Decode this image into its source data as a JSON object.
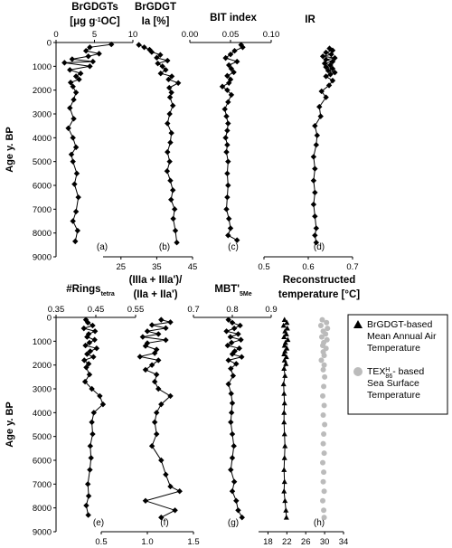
{
  "legend": {
    "items": [
      {
        "label_lines": [
          "BrGDGT-based",
          "Mean Annual Air",
          "Temperature"
        ],
        "marker": "triangle",
        "color": "#000000"
      },
      {
        "label_lines": [
          "TEX86H - based",
          "Sea Surface",
          "Temperature"
        ],
        "marker": "circle",
        "color": "#bbbbbb"
      }
    ]
  },
  "chart_data": [
    {
      "type": "line",
      "id": "a",
      "panel_label": "(a)",
      "title_lines": [
        "BrGDGTs",
        "[μg g⁻¹OC]"
      ],
      "ylabel": "Age y. BP",
      "ylim": [
        0,
        9000
      ],
      "yticks": [
        "0",
        "1000",
        "2000",
        "3000",
        "4000",
        "5000",
        "6000",
        "7000",
        "8000",
        "9000"
      ],
      "xlim": [
        0,
        10
      ],
      "xaxis_pos": "top",
      "xticks": [
        "0",
        "5",
        "10"
      ],
      "marker": "diamond",
      "color": "#000000",
      "series": [
        {
          "x": [
            7.2,
            4.4,
            3.9,
            5.6,
            4.2,
            2.1,
            4.8,
            1.1,
            4.4,
            1.8,
            3.2,
            2.6,
            3.0,
            1.9,
            2.2,
            2.6,
            2.3,
            1.8,
            2.3,
            1.6,
            2.2,
            2.6,
            2.0,
            2.2,
            2.7,
            2.4,
            2.9,
            2.6,
            2.2,
            2.8,
            2.5
          ],
          "y": [
            80,
            200,
            350,
            470,
            580,
            700,
            800,
            850,
            1000,
            1150,
            1300,
            1420,
            1550,
            1680,
            1850,
            2100,
            2400,
            2750,
            3200,
            3600,
            4000,
            4400,
            4700,
            5000,
            5500,
            5950,
            6500,
            7100,
            7500,
            7900,
            8350
          ]
        }
      ]
    },
    {
      "type": "line",
      "id": "b",
      "panel_label": "(b)",
      "title_lines": [
        "BrGDGT",
        "Ia [%]"
      ],
      "ylim": [
        0,
        9000
      ],
      "xlim": [
        20,
        45
      ],
      "xaxis_pos": "bottom",
      "xticks": [
        "25",
        "35",
        "45"
      ],
      "marker": "diamond",
      "color": "#000000",
      "series": [
        {
          "x": [
            30.0,
            31.5,
            33.0,
            33.6,
            36.0,
            35.0,
            38.0,
            35.3,
            36.6,
            37.5,
            36.1,
            39.2,
            38.3,
            41.0,
            38.5,
            39.1,
            38.7,
            39.5,
            38.6,
            38.0,
            39.1,
            38.8,
            38.0,
            38.6,
            37.9,
            38.8,
            39.5,
            39.0,
            40.0,
            39.6,
            40.2,
            40.6
          ],
          "y": [
            100,
            200,
            300,
            400,
            520,
            640,
            760,
            880,
            1000,
            1150,
            1300,
            1420,
            1550,
            1700,
            1900,
            2100,
            2300,
            2650,
            3000,
            3400,
            3800,
            4200,
            4600,
            5000,
            5400,
            5800,
            6200,
            6600,
            7000,
            7400,
            7900,
            8400
          ]
        }
      ]
    },
    {
      "type": "line",
      "id": "c",
      "panel_label": "(c)",
      "title_lines": [
        "BIT index"
      ],
      "ylim": [
        0,
        9000
      ],
      "xlim": [
        0,
        0.1
      ],
      "xaxis_pos": "top",
      "xticks": [
        "0.00",
        "0.05",
        "0.10"
      ],
      "marker": "diamond",
      "color": "#000000",
      "series": [
        {
          "x": [
            0.063,
            0.065,
            0.055,
            0.05,
            0.044,
            0.058,
            0.048,
            0.051,
            0.054,
            0.046,
            0.05,
            0.048,
            0.04,
            0.046,
            0.051,
            0.047,
            0.043,
            0.045,
            0.047,
            0.046,
            0.044,
            0.046,
            0.045,
            0.047,
            0.046,
            0.047,
            0.046,
            0.045,
            0.048,
            0.05,
            0.047,
            0.058
          ],
          "y": [
            100,
            200,
            350,
            500,
            650,
            800,
            950,
            1100,
            1250,
            1400,
            1550,
            1700,
            1850,
            2000,
            2200,
            2500,
            2800,
            3100,
            3400,
            3700,
            4000,
            4300,
            4600,
            5000,
            5500,
            6000,
            6500,
            7000,
            7400,
            7800,
            8100,
            8300
          ]
        }
      ]
    },
    {
      "type": "line",
      "id": "d",
      "panel_label": "(d)",
      "title_lines": [
        "IR"
      ],
      "ylim": [
        0,
        9000
      ],
      "xlim": [
        0.5,
        0.7
      ],
      "xaxis_pos": "bottom",
      "xticks": [
        "0.5",
        "0.6",
        "0.7"
      ],
      "marker": "diamond",
      "color": "#000000",
      "series": [
        {
          "x": [
            0.648,
            0.655,
            0.64,
            0.652,
            0.633,
            0.66,
            0.64,
            0.655,
            0.637,
            0.65,
            0.64,
            0.655,
            0.645,
            0.66,
            0.65,
            0.64,
            0.655,
            0.647,
            0.63,
            0.64,
            0.625,
            0.628,
            0.615,
            0.62,
            0.618,
            0.612,
            0.615,
            0.612,
            0.615,
            0.612,
            0.615,
            0.618,
            0.615,
            0.618
          ],
          "y": [
            250,
            330,
            420,
            500,
            580,
            650,
            720,
            800,
            880,
            950,
            1030,
            1100,
            1180,
            1260,
            1340,
            1420,
            1600,
            1800,
            2050,
            2300,
            2700,
            3100,
            3500,
            3900,
            4300,
            4800,
            5300,
            5800,
            6300,
            6800,
            7300,
            7800,
            8100,
            8400
          ]
        }
      ]
    },
    {
      "type": "line",
      "id": "e",
      "panel_label": "(e)",
      "title_lines": [
        "#Ringstetra"
      ],
      "ylabel": "Age y. BP",
      "ylim": [
        0,
        9000
      ],
      "yticks": [
        "0",
        "1000",
        "2000",
        "3000",
        "4000",
        "5000",
        "6000",
        "7000",
        "8000",
        "9000"
      ],
      "xlim": [
        0.35,
        0.55
      ],
      "xaxis_pos": "top",
      "xticks": [
        "0.35",
        "0.45",
        "0.55"
      ],
      "marker": "diamond",
      "color": "#000000",
      "series": [
        {
          "x": [
            0.425,
            0.43,
            0.442,
            0.42,
            0.448,
            0.432,
            0.428,
            0.447,
            0.434,
            0.424,
            0.452,
            0.436,
            0.428,
            0.444,
            0.421,
            0.432,
            0.426,
            0.434,
            0.423,
            0.44,
            0.46,
            0.468,
            0.445,
            0.44,
            0.442,
            0.436,
            0.438,
            0.435,
            0.43,
            0.432,
            0.426,
            0.431
          ],
          "y": [
            100,
            220,
            340,
            460,
            580,
            700,
            820,
            940,
            1060,
            1180,
            1300,
            1420,
            1540,
            1660,
            1800,
            1950,
            2100,
            2400,
            2700,
            3000,
            3300,
            3650,
            4000,
            4400,
            4900,
            5400,
            5900,
            6400,
            7000,
            7500,
            7900,
            8300
          ]
        }
      ]
    },
    {
      "type": "line",
      "id": "f",
      "panel_label": "(f)",
      "title_lines": [
        "(IIIa + IIIa')/",
        "(IIa + IIa')"
      ],
      "ylim": [
        0,
        9000
      ],
      "xlim": [
        0.5,
        1.5
      ],
      "xaxis_pos": "bottom",
      "xticks": [
        "0.5",
        "1.0",
        "1.5"
      ],
      "marker": "diamond",
      "color": "#000000",
      "series": [
        {
          "x": [
            1.15,
            1.25,
            1.05,
            1.2,
            1.0,
            1.12,
            0.95,
            1.2,
            1.0,
            0.98,
            1.1,
            1.08,
            0.92,
            1.12,
            1.05,
            0.98,
            1.1,
            1.08,
            1.12,
            1.25,
            1.15,
            1.1,
            1.08,
            1.1,
            1.05,
            1.15,
            1.2,
            1.25,
            1.35,
            0.98,
            1.3,
            1.15
          ],
          "y": [
            100,
            200,
            320,
            450,
            580,
            700,
            820,
            950,
            1080,
            1200,
            1350,
            1500,
            1650,
            1800,
            2000,
            2200,
            2400,
            2700,
            3000,
            3300,
            3650,
            4000,
            4400,
            4900,
            5400,
            6000,
            6600,
            7100,
            7300,
            7700,
            8100,
            8400
          ]
        }
      ]
    },
    {
      "type": "line",
      "id": "g",
      "panel_label": "(g)",
      "title_lines": [
        "MBT'5Me"
      ],
      "ylim": [
        0,
        9000
      ],
      "xlim": [
        0.7,
        0.9
      ],
      "xaxis_pos": "top",
      "xticks": [
        "0.7",
        "0.8",
        "0.9"
      ],
      "marker": "diamond",
      "color": "#000000",
      "series": [
        {
          "x": [
            0.79,
            0.8,
            0.82,
            0.805,
            0.785,
            0.815,
            0.795,
            0.822,
            0.798,
            0.788,
            0.818,
            0.806,
            0.8,
            0.824,
            0.79,
            0.81,
            0.796,
            0.802,
            0.79,
            0.797,
            0.8,
            0.798,
            0.796,
            0.8,
            0.804,
            0.8,
            0.796,
            0.805,
            0.8,
            0.81,
            0.815,
            0.825
          ],
          "y": [
            100,
            220,
            340,
            460,
            580,
            700,
            820,
            940,
            1060,
            1180,
            1300,
            1420,
            1540,
            1660,
            1800,
            1950,
            2150,
            2450,
            2800,
            3200,
            3600,
            4000,
            4400,
            4900,
            5400,
            5900,
            6400,
            6900,
            7300,
            7700,
            8100,
            8400
          ]
        }
      ]
    },
    {
      "type": "line",
      "id": "h",
      "panel_label": "(h)",
      "title_lines": [
        "Reconstructed",
        "temperature [°C]"
      ],
      "ylim": [
        0,
        9000
      ],
      "xlim": [
        16,
        34
      ],
      "xaxis_pos": "bottom",
      "xticks": [
        "18",
        "22",
        "26",
        "30",
        "34"
      ],
      "series": [
        {
          "name": "BrGDGT-based Mean Annual Air Temperature",
          "marker": "triangle",
          "color": "#000000",
          "x": [
            21.5,
            22.0,
            21.3,
            22.1,
            21.6,
            21.9,
            21.4,
            22.2,
            21.7,
            21.5,
            22.0,
            21.6,
            21.4,
            21.9,
            21.5,
            21.8,
            21.4,
            21.6,
            21.3,
            21.4,
            21.5,
            21.4,
            21.4,
            21.5,
            21.6,
            21.5,
            21.4,
            21.5,
            21.4,
            21.6,
            21.8,
            21.9
          ],
          "y": [
            100,
            220,
            340,
            460,
            580,
            700,
            820,
            940,
            1060,
            1180,
            1300,
            1420,
            1540,
            1660,
            1800,
            1950,
            2150,
            2450,
            2800,
            3200,
            3600,
            4000,
            4400,
            4900,
            5400,
            5900,
            6400,
            6900,
            7300,
            7700,
            8100,
            8400
          ]
        },
        {
          "name": "TEX86H - based Sea Surface Temperature",
          "marker": "circle",
          "color": "#bbbbbb",
          "x": [
            29.5,
            30.4,
            29.2,
            30.6,
            29.7,
            30.2,
            29.4,
            30.5,
            29.8,
            29.6,
            30.3,
            29.7,
            29.9,
            29.3,
            29.9,
            29.7,
            30.0,
            29.8,
            29.6,
            29.9,
            29.7,
            30.0,
            29.8,
            29.7,
            29.9,
            29.6,
            29.8,
            29.7,
            29.9,
            29.6,
            29.8,
            29.9
          ],
          "y": [
            100,
            220,
            340,
            460,
            580,
            700,
            820,
            940,
            1060,
            1180,
            1300,
            1450,
            1600,
            1800,
            2000,
            2200,
            2500,
            2900,
            3300,
            3700,
            4100,
            4500,
            4900,
            5300,
            5700,
            6100,
            6500,
            6900,
            7300,
            7700,
            8100,
            8400
          ]
        }
      ]
    }
  ]
}
